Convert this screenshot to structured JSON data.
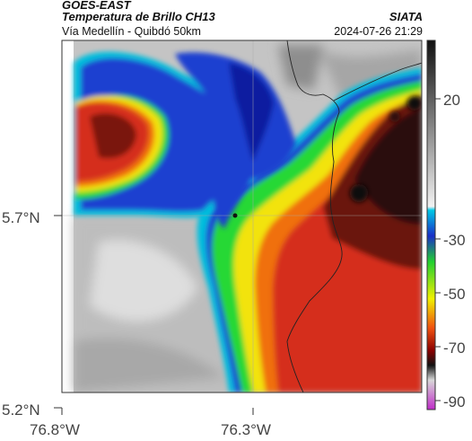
{
  "header": {
    "satellite": "GOES-EAST",
    "product": "Temperatura de Brillo CH13",
    "route": "Vía Medellín - Quibdó 50km",
    "organization": "SIATA",
    "timestamp": "2024-07-26 21:29"
  },
  "axes": {
    "latitude_labels": [
      "5.7°N",
      "5.2°N"
    ],
    "longitude_labels": [
      "76.8°W",
      "76.3°W"
    ]
  },
  "colorbar": {
    "tick_labels": [
      "20",
      "-30",
      "-50",
      "-70",
      "-90"
    ]
  },
  "colors": {
    "warm_land": "#c8c8c8",
    "cold_red": "#d52d1a",
    "deep_cold": "#3a0d0a",
    "green": "#2ee23a",
    "blue": "#1e3fd0"
  }
}
